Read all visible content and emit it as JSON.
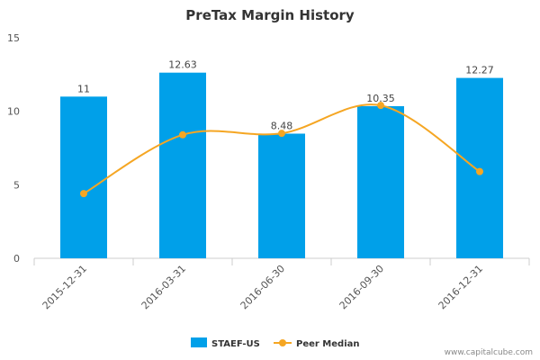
{
  "chart_data": {
    "type": "bar",
    "title": "PreTax Margin History",
    "categories": [
      "2015-12-31",
      "2016-03-31",
      "2016-06-30",
      "2016-09-30",
      "2016-12-31"
    ],
    "series": [
      {
        "name": "STAEF-US",
        "type": "bar",
        "values": [
          11,
          12.63,
          8.48,
          10.35,
          12.27
        ],
        "labels": [
          "11",
          "12.63",
          "8.48",
          "10.35",
          "12.27"
        ]
      },
      {
        "name": "Peer Median",
        "type": "line",
        "values": [
          4.4,
          8.4,
          8.5,
          10.4,
          5.9
        ]
      }
    ],
    "ylim": [
      0,
      15
    ],
    "yticks": [
      "0",
      "5",
      "10",
      "15"
    ],
    "grid": false,
    "legend": "bottom-center",
    "colors": {
      "bar": "#00a0e9",
      "line": "#f5a623",
      "axis": "#cccccc"
    }
  },
  "credit": "www.capitalcube.com"
}
